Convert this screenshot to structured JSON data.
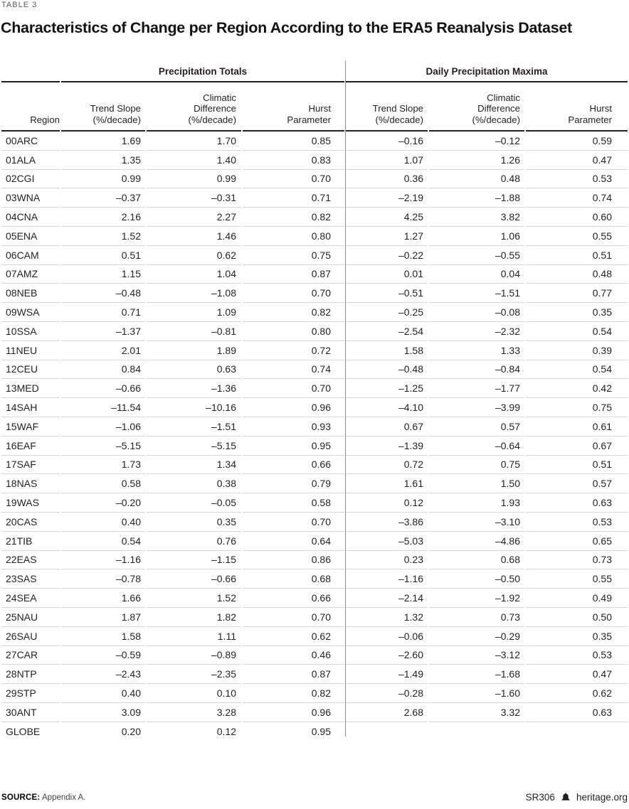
{
  "meta": {
    "table_label": "TABLE 3",
    "title": "Characteristics of Change per Region According to the ERA5 Reanalysis Dataset"
  },
  "table": {
    "group_headers": [
      "Precipitation Totals",
      "Daily Precipitation Maxima"
    ],
    "col_headers": [
      "Region",
      "Trend Slope\n(%/decade)",
      "Climatic\nDifference\n(%/decade)",
      "Hurst\nParameter",
      "Trend Slope\n(%/decade)",
      "Climatic\nDifference\n(%/decade)",
      "Hurst\nParameter"
    ],
    "rows": [
      {
        "region": "00ARC",
        "pt": [
          "1.69",
          "1.70",
          "0.85"
        ],
        "dpm": [
          "–0.16",
          "–0.12",
          "0.59"
        ]
      },
      {
        "region": "01ALA",
        "pt": [
          "1.35",
          "1.40",
          "0.83"
        ],
        "dpm": [
          "1.07",
          "1.26",
          "0.47"
        ]
      },
      {
        "region": "02CGI",
        "pt": [
          "0.99",
          "0.99",
          "0.70"
        ],
        "dpm": [
          "0.36",
          "0.48",
          "0.53"
        ]
      },
      {
        "region": "03WNA",
        "pt": [
          "–0.37",
          "–0.31",
          "0.71"
        ],
        "dpm": [
          "–2.19",
          "–1.88",
          "0.74"
        ]
      },
      {
        "region": "04CNA",
        "pt": [
          "2.16",
          "2.27",
          "0.82"
        ],
        "dpm": [
          "4.25",
          "3.82",
          "0.60"
        ]
      },
      {
        "region": "05ENA",
        "pt": [
          "1.52",
          "1.46",
          "0.80"
        ],
        "dpm": [
          "1.27",
          "1.06",
          "0.55"
        ]
      },
      {
        "region": "06CAM",
        "pt": [
          "0.51",
          "0.62",
          "0.75"
        ],
        "dpm": [
          "–0.22",
          "–0.55",
          "0.51"
        ]
      },
      {
        "region": "07AMZ",
        "pt": [
          "1.15",
          "1.04",
          "0.87"
        ],
        "dpm": [
          "0.01",
          "0.04",
          "0.48"
        ]
      },
      {
        "region": "08NEB",
        "pt": [
          "–0.48",
          "–1.08",
          "0.70"
        ],
        "dpm": [
          "–0.51",
          "–1.51",
          "0.77"
        ]
      },
      {
        "region": "09WSA",
        "pt": [
          "0.71",
          "1.09",
          "0.82"
        ],
        "dpm": [
          "–0.25",
          "–0.08",
          "0.35"
        ]
      },
      {
        "region": "10SSA",
        "pt": [
          "–1.37",
          "–0.81",
          "0.80"
        ],
        "dpm": [
          "–2.54",
          "–2.32",
          "0.54"
        ]
      },
      {
        "region": "11NEU",
        "pt": [
          "2.01",
          "1.89",
          "0.72"
        ],
        "dpm": [
          "1.58",
          "1.33",
          "0.39"
        ]
      },
      {
        "region": "12CEU",
        "pt": [
          "0.84",
          "0.63",
          "0.74"
        ],
        "dpm": [
          "–0.48",
          "–0.84",
          "0.54"
        ]
      },
      {
        "region": "13MED",
        "pt": [
          "–0.66",
          "–1.36",
          "0.70"
        ],
        "dpm": [
          "–1.25",
          "–1.77",
          "0.42"
        ]
      },
      {
        "region": "14SAH",
        "pt": [
          "–11.54",
          "–10.16",
          "0.96"
        ],
        "dpm": [
          "–4.10",
          "–3.99",
          "0.75"
        ]
      },
      {
        "region": "15WAF",
        "pt": [
          "–1.06",
          "–1.51",
          "0.93"
        ],
        "dpm": [
          "0.67",
          "0.57",
          "0.61"
        ]
      },
      {
        "region": "16EAF",
        "pt": [
          "–5.15",
          "–5.15",
          "0.95"
        ],
        "dpm": [
          "–1.39",
          "–0.64",
          "0.67"
        ]
      },
      {
        "region": "17SAF",
        "pt": [
          "1.73",
          "1.34",
          "0.66"
        ],
        "dpm": [
          "0.72",
          "0.75",
          "0.51"
        ]
      },
      {
        "region": "18NAS",
        "pt": [
          "0.58",
          "0.38",
          "0.79"
        ],
        "dpm": [
          "1.61",
          "1.50",
          "0.57"
        ]
      },
      {
        "region": "19WAS",
        "pt": [
          "–0.20",
          "–0.05",
          "0.58"
        ],
        "dpm": [
          "0.12",
          "1.93",
          "0.63"
        ]
      },
      {
        "region": "20CAS",
        "pt": [
          "0.40",
          "0.35",
          "0.70"
        ],
        "dpm": [
          "–3.86",
          "–3.10",
          "0.53"
        ]
      },
      {
        "region": "21TIB",
        "pt": [
          "0.54",
          "0.76",
          "0.64"
        ],
        "dpm": [
          "–5.03",
          "–4.86",
          "0.65"
        ]
      },
      {
        "region": "22EAS",
        "pt": [
          "–1.16",
          "–1.15",
          "0.86"
        ],
        "dpm": [
          "0.23",
          "0.68",
          "0.73"
        ]
      },
      {
        "region": "23SAS",
        "pt": [
          "–0.78",
          "–0.66",
          "0.68"
        ],
        "dpm": [
          "–1.16",
          "–0.50",
          "0.55"
        ]
      },
      {
        "region": "24SEA",
        "pt": [
          "1.66",
          "1.52",
          "0.66"
        ],
        "dpm": [
          "–2.14",
          "–1.92",
          "0.49"
        ]
      },
      {
        "region": "25NAU",
        "pt": [
          "1.87",
          "1.82",
          "0.70"
        ],
        "dpm": [
          "1.32",
          "0.73",
          "0.50"
        ]
      },
      {
        "region": "26SAU",
        "pt": [
          "1.58",
          "1.11",
          "0.62"
        ],
        "dpm": [
          "–0.06",
          "–0.29",
          "0.35"
        ]
      },
      {
        "region": "27CAR",
        "pt": [
          "–0.59",
          "–0.89",
          "0.46"
        ],
        "dpm": [
          "–2.60",
          "–3.12",
          "0.53"
        ]
      },
      {
        "region": "28NTP",
        "pt": [
          "–2.43",
          "–2.35",
          "0.87"
        ],
        "dpm": [
          "–1.49",
          "–1.68",
          "0.47"
        ]
      },
      {
        "region": "29STP",
        "pt": [
          "0.40",
          "0.10",
          "0.82"
        ],
        "dpm": [
          "–0.28",
          "–1.60",
          "0.62"
        ]
      },
      {
        "region": "30ANT",
        "pt": [
          "3.09",
          "3.28",
          "0.96"
        ],
        "dpm": [
          "2.68",
          "3.32",
          "0.63"
        ]
      },
      {
        "region": "GLOBE",
        "pt": [
          "0.20",
          "0.12",
          "0.95"
        ],
        "dpm": [
          "",
          "",
          ""
        ]
      }
    ]
  },
  "footer": {
    "source_label": "SOURCE:",
    "source_text": "Appendix A.",
    "report_id": "SR306",
    "site": "heritage.org",
    "bell_icon": "heritage-bell-icon"
  },
  "colors": {
    "rule_dark": "#231f20",
    "row_line": "#d4d4d4",
    "divider": "#8f8f8f",
    "label_gray": "#55565a"
  }
}
